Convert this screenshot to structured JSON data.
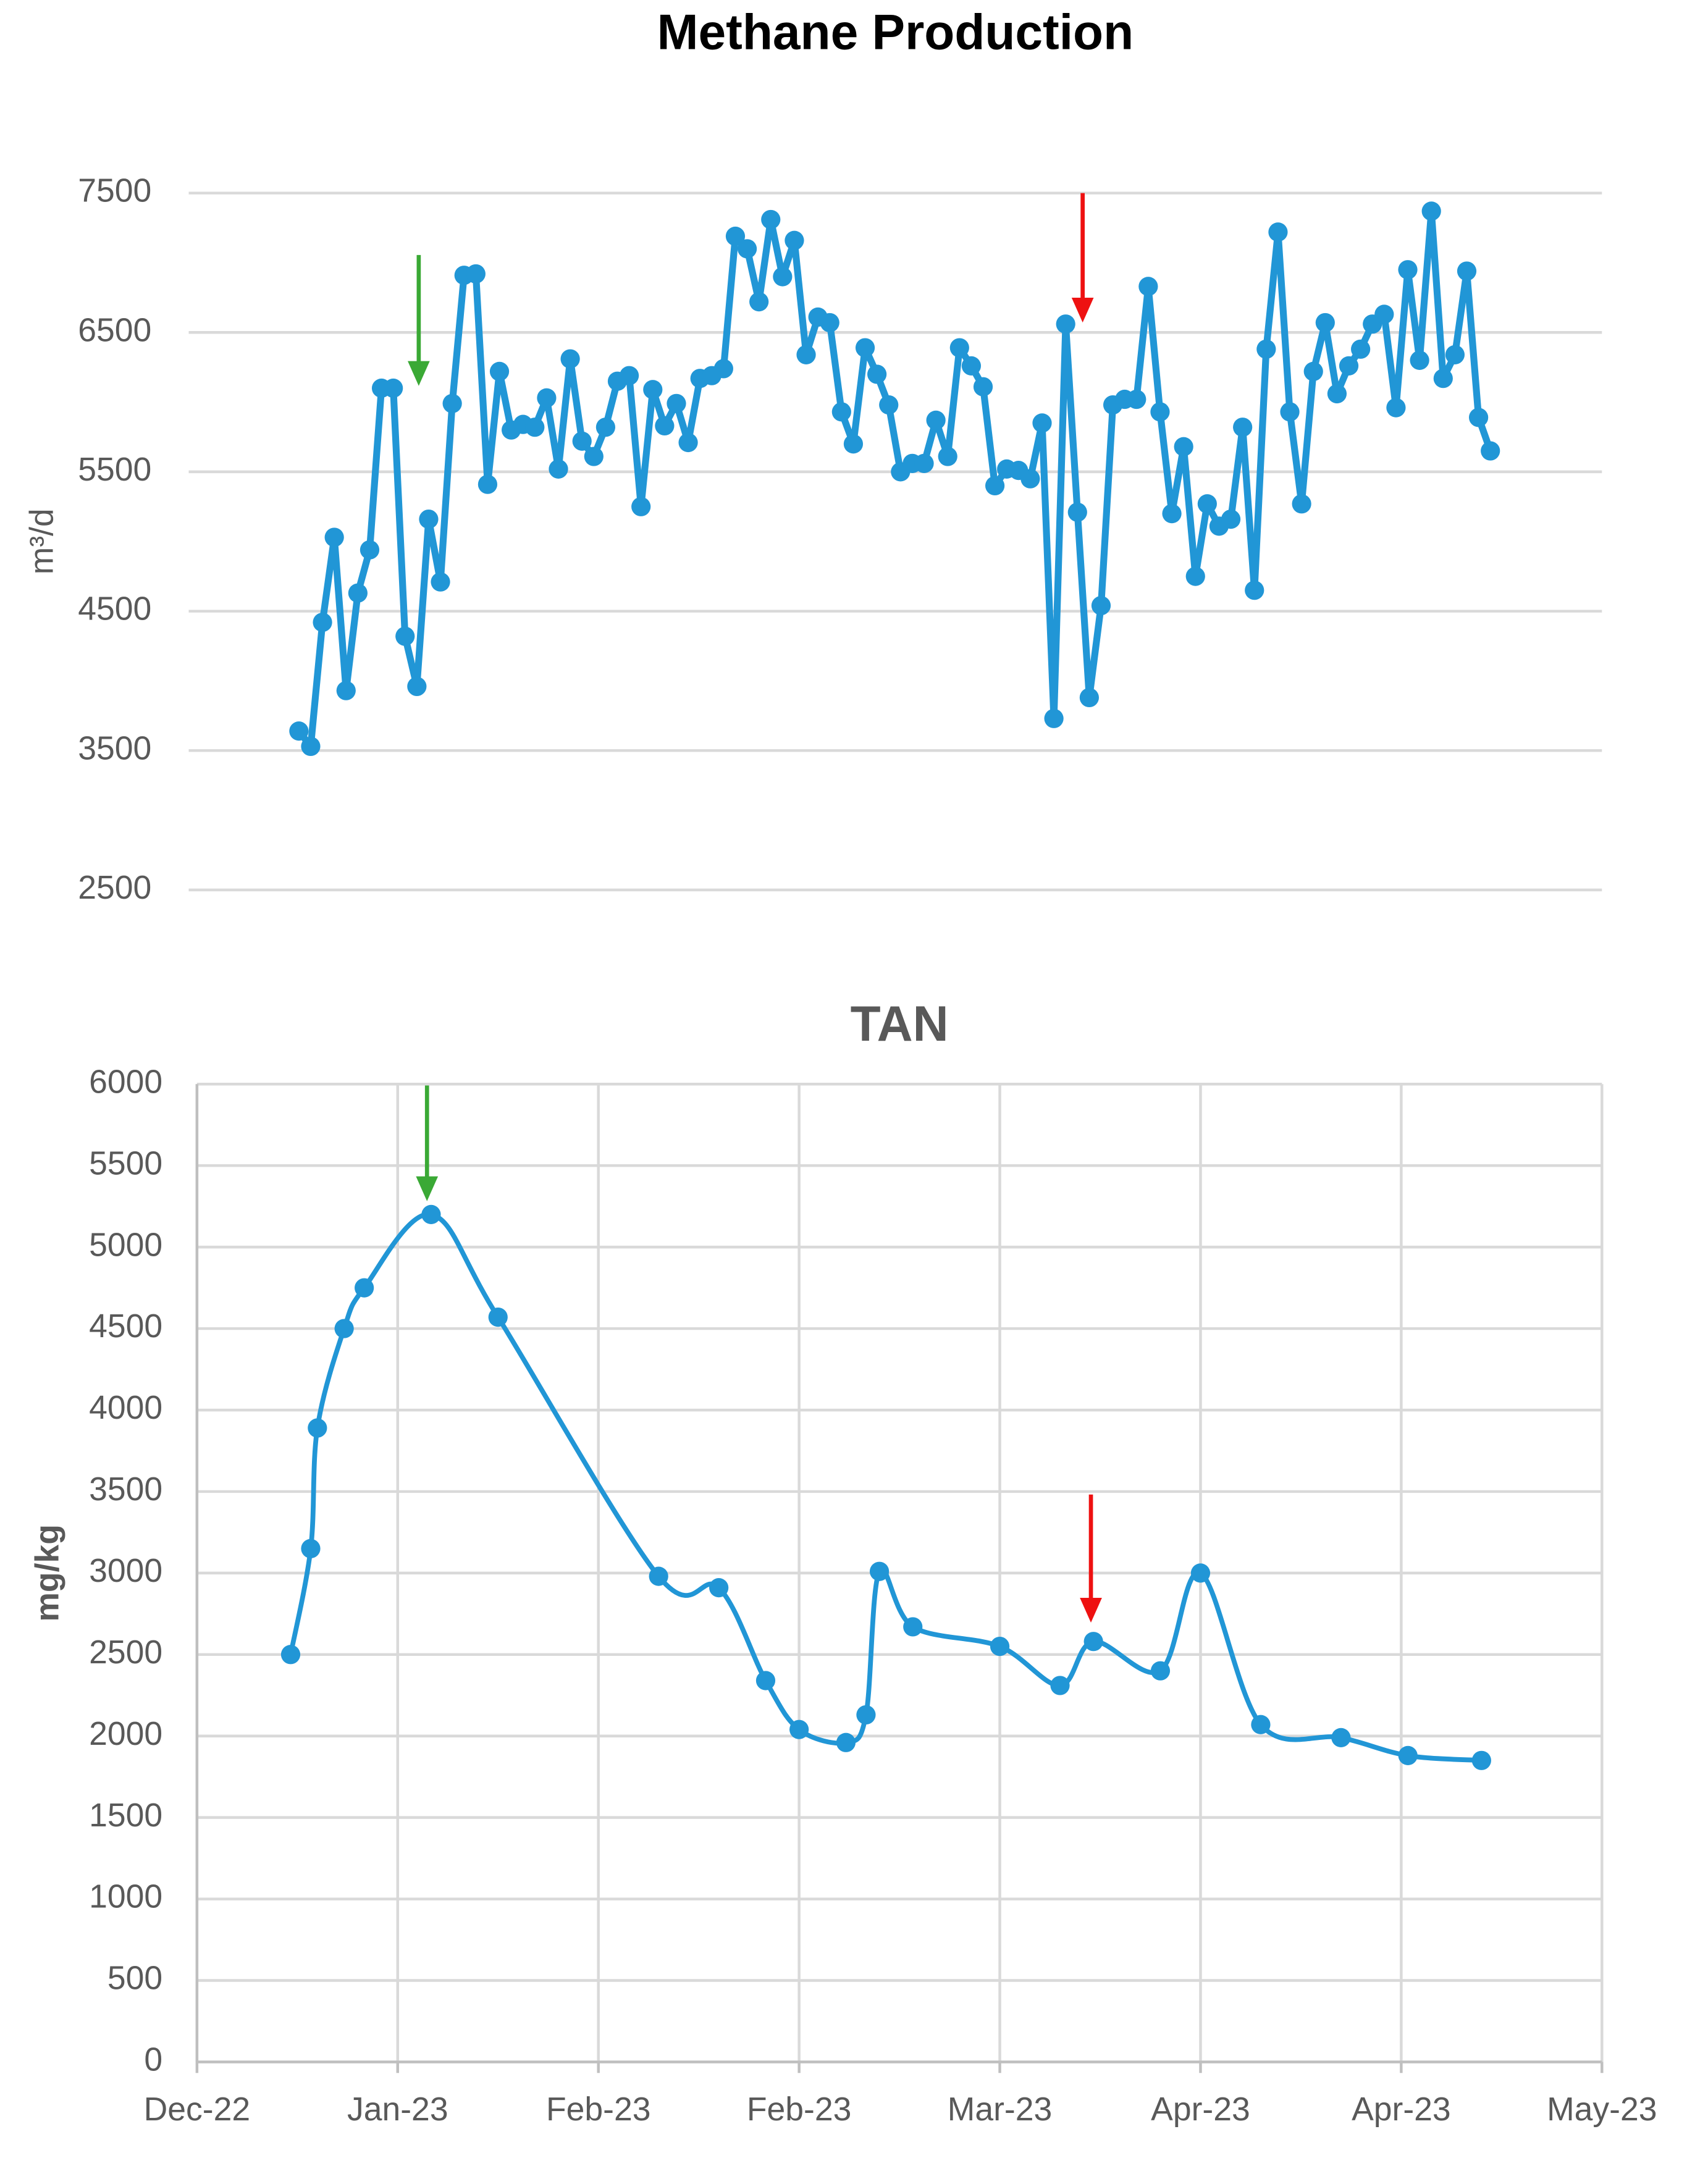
{
  "chart_data": [
    {
      "type": "line",
      "title": "Methane Production",
      "y_label": "m³/d",
      "color": "#2196d6",
      "grid": true,
      "ylim": [
        2500,
        7500
      ],
      "yticks": [
        2500,
        3500,
        4500,
        5500,
        6500,
        7500
      ],
      "values": [
        3640,
        3530,
        4420,
        5030,
        3930,
        4630,
        4940,
        6100,
        6100,
        4320,
        3960,
        5160,
        4710,
        5990,
        6910,
        6920,
        5410,
        6220,
        5800,
        5840,
        5820,
        6030,
        5520,
        6310,
        5720,
        5610,
        5820,
        6150,
        6190,
        5250,
        6090,
        5830,
        5990,
        5710,
        6170,
        6190,
        6240,
        7190,
        7100,
        6720,
        7310,
        6900,
        7160,
        6340,
        6610,
        6570,
        5930,
        5700,
        6390,
        6200,
        5980,
        5500,
        5560,
        5560,
        5870,
        5610,
        6390,
        6260,
        6110,
        5400,
        5520,
        5510,
        5450,
        5850,
        3730,
        6560,
        5210,
        3880,
        4540,
        5980,
        6020,
        6020,
        6830,
        5930,
        5200,
        5680,
        4750,
        5270,
        5110,
        5160,
        5820,
        4650,
        6380,
        7220,
        5930,
        5270,
        6220,
        6570,
        6060,
        6260,
        6380,
        6560,
        6630,
        5960,
        6950,
        6300,
        7370,
        6170,
        6340,
        6940,
        5890,
        5650
      ]
    },
    {
      "type": "line",
      "title": "TAN",
      "y_label": "mg/kg",
      "color": "#2196d6",
      "grid": true,
      "smooth": true,
      "ylim": [
        0,
        6000
      ],
      "yticks": [
        0,
        500,
        1000,
        1500,
        2000,
        2500,
        3000,
        3500,
        4000,
        4500,
        5000,
        5500,
        6000
      ],
      "xlim": [
        0,
        210
      ],
      "xticks": [
        {
          "value": 0,
          "label": "Dec-22"
        },
        {
          "value": 30,
          "label": "Jan-23"
        },
        {
          "value": 60,
          "label": "Feb-23"
        },
        {
          "value": 90,
          "label": "Feb-23"
        },
        {
          "value": 120,
          "label": "Mar-23"
        },
        {
          "value": 150,
          "label": "Apr-23"
        },
        {
          "value": 180,
          "label": "Apr-23"
        },
        {
          "value": 210,
          "label": "May-23"
        }
      ],
      "x": [
        14,
        17,
        18,
        22,
        25,
        35,
        45,
        69,
        78,
        85,
        90,
        97,
        100,
        102,
        107,
        120,
        129,
        134,
        144,
        150,
        159,
        171,
        181,
        192
      ],
      "values": [
        2500,
        3150,
        3890,
        4500,
        4750,
        5200,
        4570,
        2980,
        2910,
        2340,
        2040,
        1960,
        2130,
        3010,
        2670,
        2550,
        2310,
        2580,
        2400,
        3000,
        2070,
        1990,
        1880,
        1850
      ]
    }
  ]
}
